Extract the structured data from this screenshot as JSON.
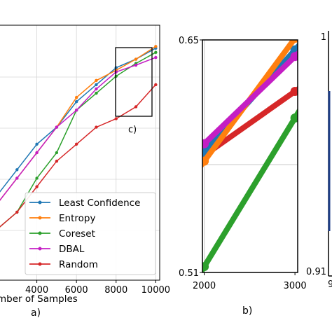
{
  "chart_data": [
    {
      "type": "line",
      "panel_label": "a)",
      "xlabel": "mber of Samples",
      "x": [
        1000,
        2000,
        3000,
        4000,
        5000,
        6000,
        7000,
        8000,
        9000,
        10000
      ],
      "xlim": [
        2000,
        10200
      ],
      "ylim": [
        0.4,
        0.7
      ],
      "xticks": [
        "4000",
        "6000",
        "8000",
        "10000"
      ],
      "xtick_values": [
        4000,
        6000,
        8000,
        10000
      ],
      "grid": true,
      "legend_position": "lower-right",
      "zoom_box_label": "c)",
      "series": [
        {
          "name": "Least Confidence",
          "color": "#1f77b4",
          "values": [
            0.47,
            0.5,
            0.53,
            0.56,
            0.58,
            0.61,
            0.63,
            0.65,
            0.66,
            0.673
          ]
        },
        {
          "name": "Entropy",
          "color": "#ff7f0e",
          "values": [
            0.46,
            0.49,
            0.52,
            0.55,
            0.58,
            0.615,
            0.635,
            0.647,
            0.66,
            0.675
          ]
        },
        {
          "name": "Coreset",
          "color": "#2ca02c",
          "values": [
            0.43,
            0.46,
            0.48,
            0.52,
            0.55,
            0.6,
            0.62,
            0.64,
            0.655,
            0.668
          ]
        },
        {
          "name": "DBAL",
          "color": "#c41ec4",
          "values": [
            0.46,
            0.49,
            0.52,
            0.55,
            0.58,
            0.6,
            0.625,
            0.645,
            0.653,
            0.662
          ]
        },
        {
          "name": "Random",
          "color": "#d62728",
          "values": [
            0.44,
            0.46,
            0.48,
            0.51,
            0.54,
            0.56,
            0.58,
            0.59,
            0.604,
            0.63
          ]
        }
      ]
    },
    {
      "type": "line",
      "panel_label": "b)",
      "x": [
        2000,
        3000
      ],
      "xlim": [
        1980,
        3030
      ],
      "ylim": [
        0.51,
        0.65
      ],
      "xticks": [
        "2000",
        "3000"
      ],
      "xtick_values": [
        2000,
        3000
      ],
      "yticks": [
        "0.51",
        "0.65"
      ],
      "ytick_values": [
        0.51,
        0.65
      ],
      "grid": true,
      "series": [
        {
          "name": "Least Confidence",
          "color": "#1f77b4",
          "values": [
            0.5825,
            0.644
          ]
        },
        {
          "name": "Entropy",
          "color": "#ff7f0e",
          "values": [
            0.577,
            0.651
          ]
        },
        {
          "name": "Coreset",
          "color": "#2ca02c",
          "values": [
            0.5135,
            0.603
          ]
        },
        {
          "name": "DBAL",
          "color": "#c41ec4",
          "values": [
            0.5875,
            0.64
          ]
        },
        {
          "name": "Random",
          "color": "#d62728",
          "values": [
            0.5805,
            0.619
          ]
        }
      ]
    },
    {
      "type": "line",
      "yticks": [
        "1",
        "0.91"
      ],
      "ytick_values": [
        1,
        0.91
      ],
      "cut_label": "9"
    }
  ]
}
